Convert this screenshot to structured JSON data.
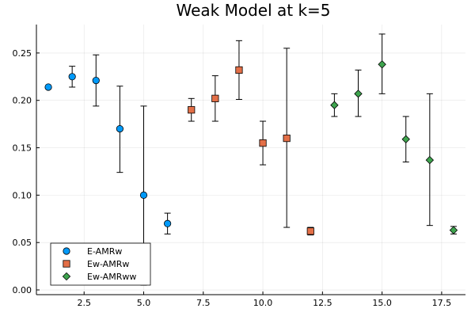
{
  "chart_data": {
    "type": "scatter",
    "title": "Weak Model at k=5",
    "xlabel": "",
    "ylabel": "",
    "xlim": [
      0.5,
      18.5
    ],
    "ylim": [
      -0.005,
      0.28
    ],
    "xticks": [
      2.5,
      5.0,
      7.5,
      10.0,
      12.5,
      15.0,
      17.5
    ],
    "xtick_labels": [
      "2.5",
      "5.0",
      "7.5",
      "10.0",
      "12.5",
      "15.0",
      "17.5"
    ],
    "yticks": [
      0.0,
      0.05,
      0.1,
      0.15,
      0.2,
      0.25
    ],
    "ytick_labels": [
      "0.00",
      "0.05",
      "0.10",
      "0.15",
      "0.20",
      "0.25"
    ],
    "grid": true,
    "legend_position": "bottom-left",
    "series": [
      {
        "name": "E-AMRw",
        "marker": "circle",
        "color": "#009AFA",
        "points": [
          {
            "x": 1,
            "y": 0.214,
            "lo": null,
            "hi": null
          },
          {
            "x": 2,
            "y": 0.225,
            "lo": 0.214,
            "hi": 0.236
          },
          {
            "x": 3,
            "y": 0.221,
            "lo": 0.194,
            "hi": 0.248
          },
          {
            "x": 4,
            "y": 0.17,
            "lo": 0.124,
            "hi": 0.215
          },
          {
            "x": 5,
            "y": 0.1,
            "lo": 0.005,
            "hi": 0.194
          },
          {
            "x": 6,
            "y": 0.07,
            "lo": 0.059,
            "hi": 0.081
          }
        ]
      },
      {
        "name": "Ew-AMRw",
        "marker": "square",
        "color": "#E36F47",
        "points": [
          {
            "x": 7,
            "y": 0.19,
            "lo": 0.178,
            "hi": 0.202
          },
          {
            "x": 8,
            "y": 0.202,
            "lo": 0.178,
            "hi": 0.226
          },
          {
            "x": 9,
            "y": 0.232,
            "lo": 0.201,
            "hi": 0.263
          },
          {
            "x": 10,
            "y": 0.155,
            "lo": 0.132,
            "hi": 0.178
          },
          {
            "x": 11,
            "y": 0.16,
            "lo": 0.066,
            "hi": 0.255
          },
          {
            "x": 12,
            "y": 0.062,
            "lo": 0.058,
            "hi": 0.066
          }
        ]
      },
      {
        "name": "Ew-AMRww",
        "marker": "diamond",
        "color": "#3EA44E",
        "points": [
          {
            "x": 13,
            "y": 0.195,
            "lo": 0.183,
            "hi": 0.207
          },
          {
            "x": 14,
            "y": 0.207,
            "lo": 0.183,
            "hi": 0.232
          },
          {
            "x": 15,
            "y": 0.238,
            "lo": 0.207,
            "hi": 0.27
          },
          {
            "x": 16,
            "y": 0.159,
            "lo": 0.135,
            "hi": 0.183
          },
          {
            "x": 17,
            "y": 0.137,
            "lo": 0.068,
            "hi": 0.207
          },
          {
            "x": 18,
            "y": 0.063,
            "lo": 0.059,
            "hi": 0.067
          }
        ]
      }
    ]
  }
}
